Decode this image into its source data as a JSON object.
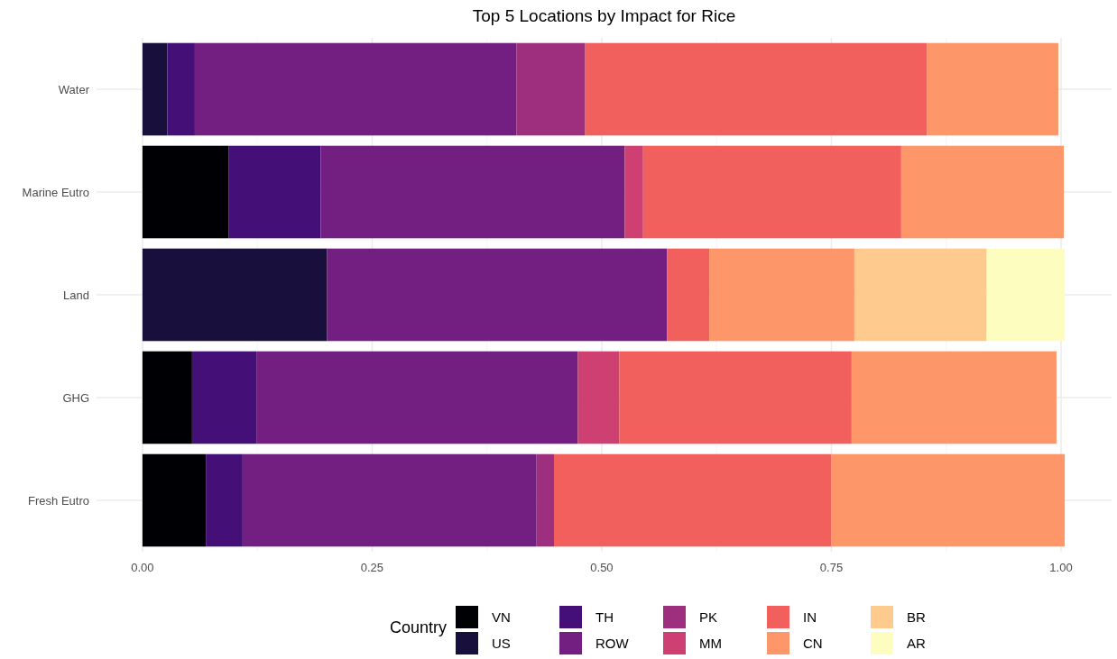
{
  "chart_data": {
    "type": "bar",
    "orientation": "horizontal",
    "stacked": true,
    "title": "Top 5 Locations by Impact for Rice",
    "legend_title": "Country",
    "categories": [
      "Water",
      "Marine Eutro",
      "Land",
      "GHG",
      "Fresh Eutro"
    ],
    "series": [
      {
        "name": "VN",
        "color": "#000004",
        "values": [
          null,
          0.094,
          null,
          0.054,
          0.069
        ]
      },
      {
        "name": "US",
        "color": "#180f3d",
        "values": [
          0.027,
          null,
          0.201,
          null,
          null
        ]
      },
      {
        "name": "TH",
        "color": "#440f76",
        "values": [
          0.03,
          0.1,
          null,
          0.07,
          0.04
        ]
      },
      {
        "name": "ROW",
        "color": "#721f81",
        "values": [
          0.35,
          0.331,
          0.37,
          0.35,
          0.32
        ]
      },
      {
        "name": "PK",
        "color": "#9e2f7f",
        "values": [
          0.075,
          null,
          null,
          null,
          0.019
        ]
      },
      {
        "name": "MM",
        "color": "#cd4071",
        "values": [
          null,
          0.02,
          null,
          0.045,
          null
        ]
      },
      {
        "name": "IN",
        "color": "#f1605d",
        "values": [
          0.372,
          0.281,
          0.046,
          0.253,
          0.302
        ]
      },
      {
        "name": "CN",
        "color": "#fd9668",
        "values": [
          0.143,
          0.177,
          0.158,
          0.223,
          0.254
        ]
      },
      {
        "name": "BR",
        "color": "#feca8d",
        "values": [
          null,
          null,
          0.144,
          null,
          null
        ]
      },
      {
        "name": "AR",
        "color": "#fcfdbf",
        "values": [
          null,
          null,
          0.085,
          null,
          null
        ]
      }
    ],
    "xlim": [
      -0.05,
      1.055
    ],
    "xticks": [
      {
        "value": 0,
        "label": "0.00"
      },
      {
        "value": 0.25,
        "label": "0.25"
      },
      {
        "value": 0.5,
        "label": "0.50"
      },
      {
        "value": 0.75,
        "label": "0.75"
      },
      {
        "value": 1,
        "label": "1.00"
      }
    ],
    "grid": true,
    "legend": "bottom"
  }
}
